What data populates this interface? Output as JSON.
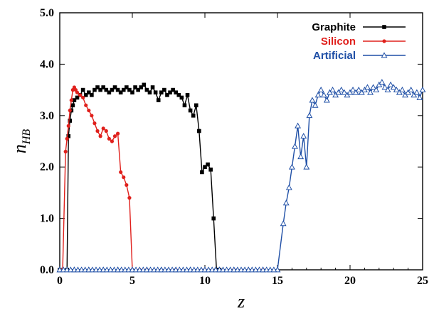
{
  "chart_data": {
    "type": "line",
    "xlabel": "z",
    "ylabel": {
      "main": "n",
      "sub": "HB"
    },
    "xlim": [
      0,
      25
    ],
    "ylim": [
      0.0,
      5.0
    ],
    "xticks": [
      "0",
      "5",
      "10",
      "15",
      "20",
      "25"
    ],
    "yticks": [
      "0.0",
      "1.0",
      "2.0",
      "3.0",
      "4.0",
      "5.0"
    ],
    "legend_position": "top-right",
    "series": [
      {
        "name": "Graphite",
        "color": "#000000",
        "marker": "square",
        "x": [
          -0.5,
          0,
          0.5,
          0.6,
          0.7,
          0.8,
          0.9,
          1.0,
          1.2,
          1.4,
          1.6,
          1.8,
          2.0,
          2.2,
          2.4,
          2.6,
          2.8,
          3.0,
          3.2,
          3.4,
          3.6,
          3.8,
          4.0,
          4.2,
          4.4,
          4.6,
          4.8,
          5.0,
          5.2,
          5.4,
          5.6,
          5.8,
          6.0,
          6.2,
          6.4,
          6.6,
          6.8,
          7.0,
          7.2,
          7.4,
          7.6,
          7.8,
          8.0,
          8.2,
          8.4,
          8.6,
          8.8,
          9.0,
          9.2,
          9.4,
          9.6,
          9.8,
          10.0,
          10.2,
          10.4,
          10.6,
          10.8,
          11.0
        ],
        "y": [
          0.0,
          0.0,
          0.0,
          2.6,
          2.9,
          3.1,
          3.2,
          3.3,
          3.35,
          3.4,
          3.5,
          3.4,
          3.45,
          3.4,
          3.5,
          3.55,
          3.5,
          3.55,
          3.5,
          3.45,
          3.5,
          3.55,
          3.5,
          3.45,
          3.5,
          3.55,
          3.5,
          3.45,
          3.55,
          3.5,
          3.55,
          3.6,
          3.5,
          3.45,
          3.55,
          3.45,
          3.3,
          3.45,
          3.5,
          3.4,
          3.45,
          3.5,
          3.45,
          3.4,
          3.35,
          3.2,
          3.4,
          3.1,
          3.0,
          3.2,
          2.7,
          1.9,
          2.0,
          2.05,
          1.95,
          1.0,
          0.0,
          0.0
        ]
      },
      {
        "name": "Silicon",
        "color": "#e0201c",
        "marker": "circle",
        "x": [
          0.2,
          0.4,
          0.5,
          0.6,
          0.7,
          0.8,
          0.9,
          1.0,
          1.1,
          1.2,
          1.4,
          1.6,
          1.8,
          2.0,
          2.2,
          2.4,
          2.6,
          2.8,
          3.0,
          3.2,
          3.4,
          3.6,
          3.8,
          4.0,
          4.2,
          4.4,
          4.6,
          4.8,
          5.0,
          5.5,
          6.0,
          8.0,
          10.0,
          12.0,
          14.0
        ],
        "y": [
          0.0,
          2.3,
          2.55,
          2.8,
          3.1,
          3.3,
          3.5,
          3.55,
          3.5,
          3.45,
          3.4,
          3.35,
          3.2,
          3.1,
          3.0,
          2.85,
          2.7,
          2.6,
          2.75,
          2.7,
          2.55,
          2.5,
          2.6,
          2.65,
          1.9,
          1.8,
          1.65,
          1.4,
          0.0,
          0.0,
          0.0,
          0.0,
          0.0,
          0.0,
          0.0
        ]
      },
      {
        "name": "Artificial",
        "color": "#1f4fa6",
        "marker": "triangle",
        "x": [
          0,
          1,
          2,
          3,
          4,
          5,
          6,
          7,
          8,
          9,
          10,
          11,
          12,
          13,
          14,
          15.0,
          15.4,
          15.6,
          15.8,
          16.0,
          16.2,
          16.4,
          16.6,
          16.8,
          17.0,
          17.2,
          17.4,
          17.6,
          17.8,
          18.0,
          18.2,
          18.4,
          18.6,
          18.8,
          19.0,
          19.2,
          19.4,
          19.6,
          19.8,
          20.0,
          20.2,
          20.4,
          20.6,
          20.8,
          21.0,
          21.2,
          21.4,
          21.6,
          21.8,
          22.0,
          22.2,
          22.4,
          22.6,
          22.8,
          23.0,
          23.2,
          23.4,
          23.6,
          23.8,
          24.0,
          24.2,
          24.4,
          24.6,
          24.8,
          25.0
        ],
        "y": [
          0.0,
          0.0,
          0.0,
          0.0,
          0.0,
          0.0,
          0.0,
          0.0,
          0.0,
          0.0,
          0.0,
          0.0,
          0.0,
          0.0,
          0.0,
          0.0,
          0.9,
          1.3,
          1.6,
          2.0,
          2.4,
          2.8,
          2.2,
          2.6,
          2.0,
          3.0,
          3.3,
          3.2,
          3.4,
          3.5,
          3.4,
          3.3,
          3.45,
          3.5,
          3.4,
          3.45,
          3.5,
          3.45,
          3.4,
          3.45,
          3.5,
          3.45,
          3.5,
          3.45,
          3.5,
          3.55,
          3.45,
          3.55,
          3.5,
          3.6,
          3.65,
          3.55,
          3.5,
          3.6,
          3.55,
          3.5,
          3.45,
          3.5,
          3.4,
          3.45,
          3.5,
          3.4,
          3.45,
          3.35,
          3.5
        ]
      }
    ]
  }
}
